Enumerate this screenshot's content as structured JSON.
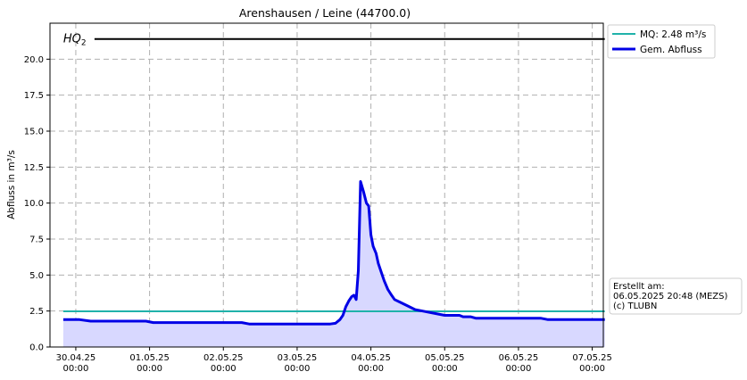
{
  "chart_data": {
    "type": "line",
    "title": "Arenshausen / Leine (44700.0)",
    "ylabel": "Abfluss in m³/s",
    "xlabel": "",
    "ylim": [
      0,
      22.5
    ],
    "grid": true,
    "legend_position": "outside-top-right",
    "x_ticks": [
      {
        "t": 0,
        "line1": "30.04.25",
        "line2": "00:00"
      },
      {
        "t": 1,
        "line1": "01.05.25",
        "line2": "00:00"
      },
      {
        "t": 2,
        "line1": "02.05.25",
        "line2": "00:00"
      },
      {
        "t": 3,
        "line1": "03.05.25",
        "line2": "00:00"
      },
      {
        "t": 4,
        "line1": "04.05.25",
        "line2": "00:00"
      },
      {
        "t": 5,
        "line1": "05.05.25",
        "line2": "00:00"
      },
      {
        "t": 6,
        "line1": "06.05.25",
        "line2": "00:00"
      },
      {
        "t": 7,
        "line1": "07.05.25",
        "line2": "00:00"
      }
    ],
    "y_ticks": [
      "0.0",
      "2.5",
      "5.0",
      "7.5",
      "10.0",
      "12.5",
      "15.0",
      "17.5",
      "20.0"
    ],
    "hq2": {
      "label_main": "HQ",
      "label_sub": "2",
      "value": 21.4,
      "color": "#000000"
    },
    "series": [
      {
        "name": "MQ: 2.48 m³/s",
        "color": "#20b2aa",
        "value": 2.48,
        "width": 2
      },
      {
        "name": "Gem. Abfluss",
        "color": "#0000e6",
        "fill": "#d8d8ff",
        "width": 3,
        "points": [
          [
            -0.17,
            1.9
          ],
          [
            0.05,
            1.9
          ],
          [
            0.2,
            1.8
          ],
          [
            0.5,
            1.8
          ],
          [
            0.95,
            1.8
          ],
          [
            1.05,
            1.7
          ],
          [
            1.5,
            1.7
          ],
          [
            1.95,
            1.7
          ],
          [
            2.25,
            1.7
          ],
          [
            2.35,
            1.6
          ],
          [
            3.0,
            1.6
          ],
          [
            3.45,
            1.6
          ],
          [
            3.52,
            1.65
          ],
          [
            3.58,
            1.9
          ],
          [
            3.62,
            2.2
          ],
          [
            3.66,
            2.8
          ],
          [
            3.7,
            3.2
          ],
          [
            3.74,
            3.5
          ],
          [
            3.77,
            3.6
          ],
          [
            3.8,
            3.3
          ],
          [
            3.83,
            5.3
          ],
          [
            3.86,
            11.5
          ],
          [
            3.9,
            10.8
          ],
          [
            3.94,
            10.0
          ],
          [
            3.97,
            9.8
          ],
          [
            4.0,
            7.8
          ],
          [
            4.03,
            7.0
          ],
          [
            4.07,
            6.5
          ],
          [
            4.1,
            5.8
          ],
          [
            4.14,
            5.2
          ],
          [
            4.18,
            4.6
          ],
          [
            4.23,
            4.0
          ],
          [
            4.28,
            3.6
          ],
          [
            4.32,
            3.3
          ],
          [
            4.4,
            3.1
          ],
          [
            4.5,
            2.85
          ],
          [
            4.6,
            2.6
          ],
          [
            4.7,
            2.5
          ],
          [
            4.8,
            2.4
          ],
          [
            4.9,
            2.3
          ],
          [
            5.0,
            2.2
          ],
          [
            5.1,
            2.2
          ],
          [
            5.2,
            2.2
          ],
          [
            5.25,
            2.1
          ],
          [
            5.35,
            2.1
          ],
          [
            5.42,
            2.0
          ],
          [
            5.6,
            2.0
          ],
          [
            6.0,
            2.0
          ],
          [
            6.3,
            2.0
          ],
          [
            6.4,
            1.9
          ],
          [
            6.6,
            1.9
          ],
          [
            7.0,
            1.9
          ],
          [
            7.17,
            1.9
          ]
        ]
      }
    ],
    "x_range": [
      -0.35,
      7.15
    ]
  },
  "info_box": {
    "line1": "Erstellt am:",
    "line2": "06.05.2025 20:48 (MEZS)",
    "line3": "(c) TLUBN"
  }
}
